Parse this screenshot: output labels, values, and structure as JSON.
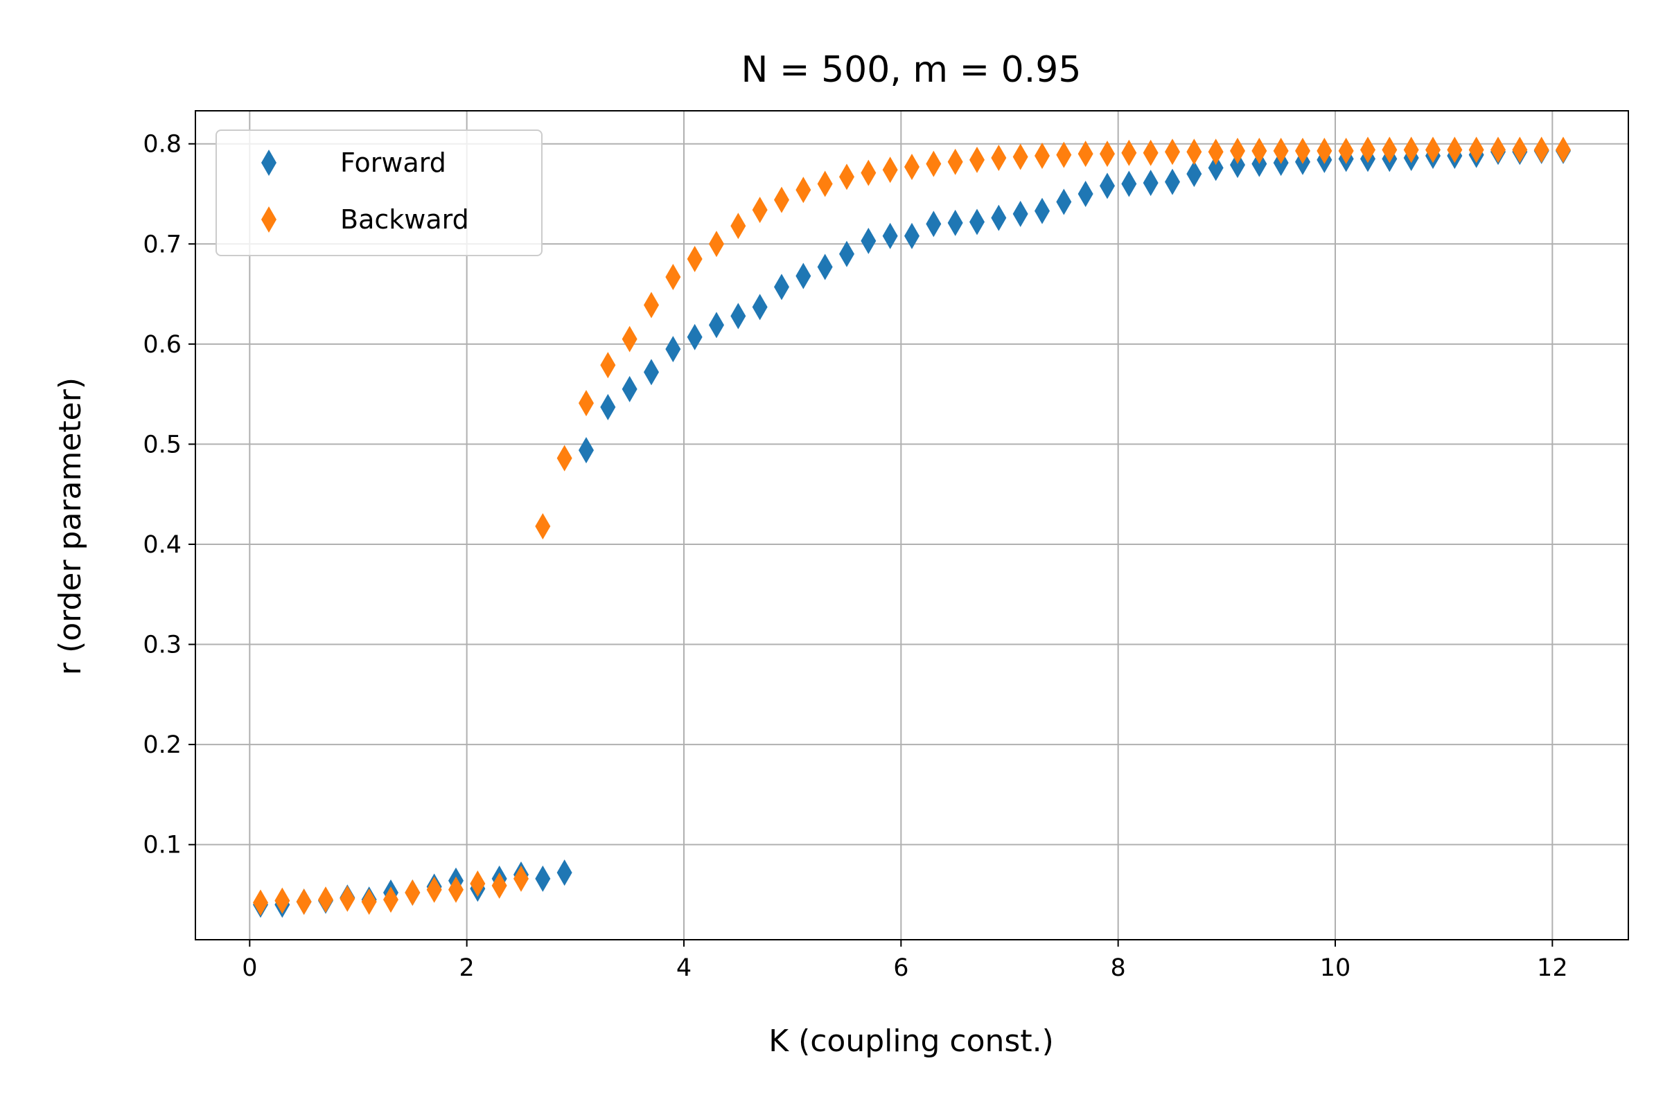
{
  "chart_data": {
    "type": "scatter",
    "title": "N = 500, m = 0.95",
    "xlabel": "K (coupling const.)",
    "ylabel": "r (order parameter)",
    "xlim": [
      -0.5,
      12.7
    ],
    "ylim": [
      0.005,
      0.833
    ],
    "xticks": [
      0,
      2,
      4,
      6,
      8,
      10,
      12
    ],
    "yticks": [
      0.1,
      0.2,
      0.3,
      0.4,
      0.5,
      0.6,
      0.7,
      0.8
    ],
    "xtick_labels": [
      "0",
      "2",
      "4",
      "6",
      "8",
      "10",
      "12"
    ],
    "ytick_labels": [
      "0.1",
      "0.2",
      "0.3",
      "0.4",
      "0.5",
      "0.6",
      "0.7",
      "0.8"
    ],
    "grid": true,
    "legend_position": "top-left",
    "marker": "thin-diamond",
    "series": [
      {
        "name": "Forward",
        "color": "#1f77b4",
        "x": [
          0.1,
          0.3,
          0.5,
          0.7,
          0.9,
          1.1,
          1.3,
          1.5,
          1.7,
          1.9,
          2.1,
          2.3,
          2.5,
          2.7,
          2.9,
          3.1,
          3.3,
          3.5,
          3.7,
          3.9,
          4.1,
          4.3,
          4.5,
          4.7,
          4.9,
          5.1,
          5.3,
          5.5,
          5.7,
          5.9,
          6.1,
          6.3,
          6.5,
          6.7,
          6.9,
          7.1,
          7.3,
          7.5,
          7.7,
          7.9,
          8.1,
          8.3,
          8.5,
          8.7,
          8.9,
          9.1,
          9.3,
          9.5,
          9.7,
          9.9,
          10.1,
          10.3,
          10.5,
          10.7,
          10.9,
          11.1,
          11.3,
          11.5,
          11.7,
          11.9,
          12.1
        ],
        "y": [
          0.04,
          0.04,
          0.043,
          0.044,
          0.047,
          0.045,
          0.052,
          0.052,
          0.058,
          0.064,
          0.056,
          0.066,
          0.07,
          0.066,
          0.072,
          0.494,
          0.537,
          0.555,
          0.572,
          0.595,
          0.607,
          0.619,
          0.628,
          0.637,
          0.657,
          0.668,
          0.677,
          0.69,
          0.703,
          0.708,
          0.708,
          0.72,
          0.721,
          0.722,
          0.726,
          0.73,
          0.733,
          0.742,
          0.75,
          0.758,
          0.76,
          0.761,
          0.762,
          0.77,
          0.776,
          0.779,
          0.78,
          0.781,
          0.782,
          0.784,
          0.785,
          0.785,
          0.785,
          0.786,
          0.788,
          0.788,
          0.789,
          0.792,
          0.792,
          0.793,
          0.793
        ]
      },
      {
        "name": "Backward",
        "color": "#ff7f0e",
        "x": [
          0.1,
          0.3,
          0.5,
          0.7,
          0.9,
          1.1,
          1.3,
          1.5,
          1.7,
          1.9,
          2.1,
          2.3,
          2.5,
          2.7,
          2.9,
          3.1,
          3.3,
          3.5,
          3.7,
          3.9,
          4.1,
          4.3,
          4.5,
          4.7,
          4.9,
          5.1,
          5.3,
          5.5,
          5.7,
          5.9,
          6.1,
          6.3,
          6.5,
          6.7,
          6.9,
          7.1,
          7.3,
          7.5,
          7.7,
          7.9,
          8.1,
          8.3,
          8.5,
          8.7,
          8.9,
          9.1,
          9.3,
          9.5,
          9.7,
          9.9,
          10.1,
          10.3,
          10.5,
          10.7,
          10.9,
          11.1,
          11.3,
          11.5,
          11.7,
          11.9,
          12.1
        ],
        "y": [
          0.042,
          0.044,
          0.043,
          0.045,
          0.046,
          0.043,
          0.045,
          0.052,
          0.055,
          0.055,
          0.061,
          0.059,
          0.066,
          0.418,
          0.486,
          0.541,
          0.579,
          0.605,
          0.639,
          0.667,
          0.685,
          0.7,
          0.718,
          0.734,
          0.744,
          0.754,
          0.76,
          0.767,
          0.771,
          0.774,
          0.777,
          0.78,
          0.782,
          0.784,
          0.786,
          0.787,
          0.788,
          0.789,
          0.79,
          0.79,
          0.791,
          0.791,
          0.792,
          0.792,
          0.792,
          0.793,
          0.793,
          0.793,
          0.793,
          0.793,
          0.793,
          0.794,
          0.794,
          0.794,
          0.794,
          0.794,
          0.794,
          0.794,
          0.794,
          0.794,
          0.794
        ]
      }
    ]
  }
}
